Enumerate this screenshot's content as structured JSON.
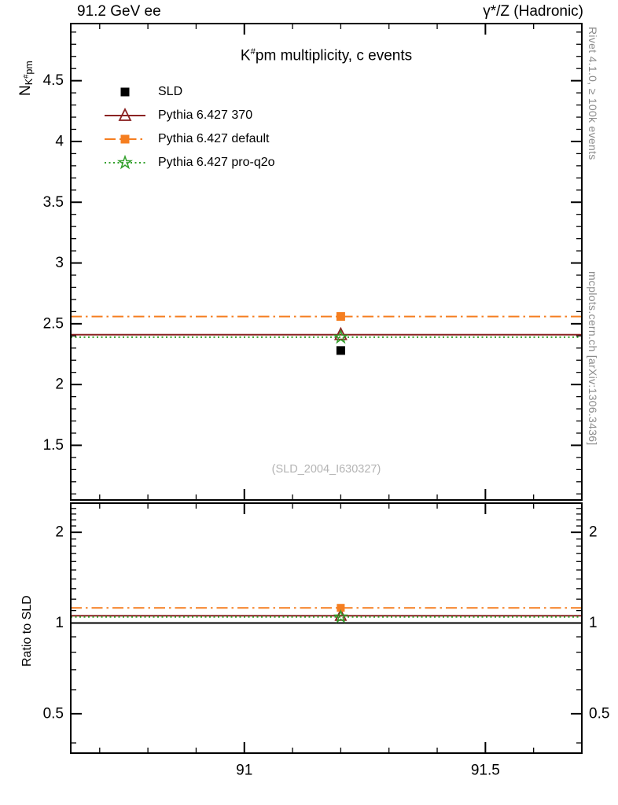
{
  "header": {
    "left": "91.2 GeV ee",
    "right": "γ*/Z (Hadronic)"
  },
  "title": {
    "base": "K",
    "sup": "#",
    "rest": "pm multiplicity, c events"
  },
  "axis_labels": {
    "y_top": {
      "base": "N",
      "sub_base": "K",
      "sub_sup": "#",
      "sub_rest": "pm"
    },
    "y_bottom": "Ratio to SLD"
  },
  "side_labels": {
    "top_right": "Rivet 4.1.0, ≥ 100k events",
    "bottom_right": "mcplots.cern.ch [arXiv:1306.3436]"
  },
  "watermark": "(SLD_2004_I630327)",
  "chart_data": {
    "type": "line",
    "x_point": 91.2,
    "xlim": [
      90.64,
      91.7
    ],
    "x_minor_step": 0.1,
    "x_ticks": [
      {
        "v": 91.0,
        "label": "91"
      },
      {
        "v": 91.5,
        "label": "91.5"
      }
    ],
    "top_panel": {
      "ylim": [
        1.05,
        4.97
      ],
      "y_minor_step": 0.1,
      "y_ticks": [
        {
          "v": 1.5,
          "label": "1.5"
        },
        {
          "v": 2.0,
          "label": "2"
        },
        {
          "v": 2.5,
          "label": "2.5"
        },
        {
          "v": 3.0,
          "label": "3"
        },
        {
          "v": 3.5,
          "label": "3.5"
        },
        {
          "v": 4.0,
          "label": "4"
        },
        {
          "v": 4.5,
          "label": "4.5"
        }
      ]
    },
    "bottom_panel": {
      "scale": "log",
      "ylim": [
        0.37,
        2.5
      ],
      "ref_value": 1.0,
      "y_ticks": [
        {
          "v": 0.5,
          "label": "0.5"
        },
        {
          "v": 1.0,
          "label": "1"
        },
        {
          "v": 2.0,
          "label": "2"
        }
      ],
      "y_minors": [
        0.4,
        0.6,
        0.7,
        0.8,
        0.9,
        1.1,
        1.2,
        1.3,
        1.4,
        1.5,
        1.6,
        1.7,
        1.8,
        1.9,
        2.1,
        2.2,
        2.3,
        2.4
      ]
    },
    "series": [
      {
        "name": "SLD",
        "value": 2.28,
        "ratio": 1.0,
        "color": "#000000",
        "marker": "square-filled"
      },
      {
        "name": "Pythia 6.427 370",
        "value": 2.41,
        "ratio": 1.057,
        "color": "#8b2323",
        "line": "solid",
        "marker": "triangle-open"
      },
      {
        "name": "Pythia 6.427 default",
        "value": 2.56,
        "ratio": 1.123,
        "color": "#f57e20",
        "line": "dashdot",
        "marker": "square-filled"
      },
      {
        "name": "Pythia 6.427 pro-q2o",
        "value": 2.39,
        "ratio": 1.048,
        "color": "#33a02c",
        "line": "dotted",
        "marker": "star-open"
      }
    ]
  }
}
